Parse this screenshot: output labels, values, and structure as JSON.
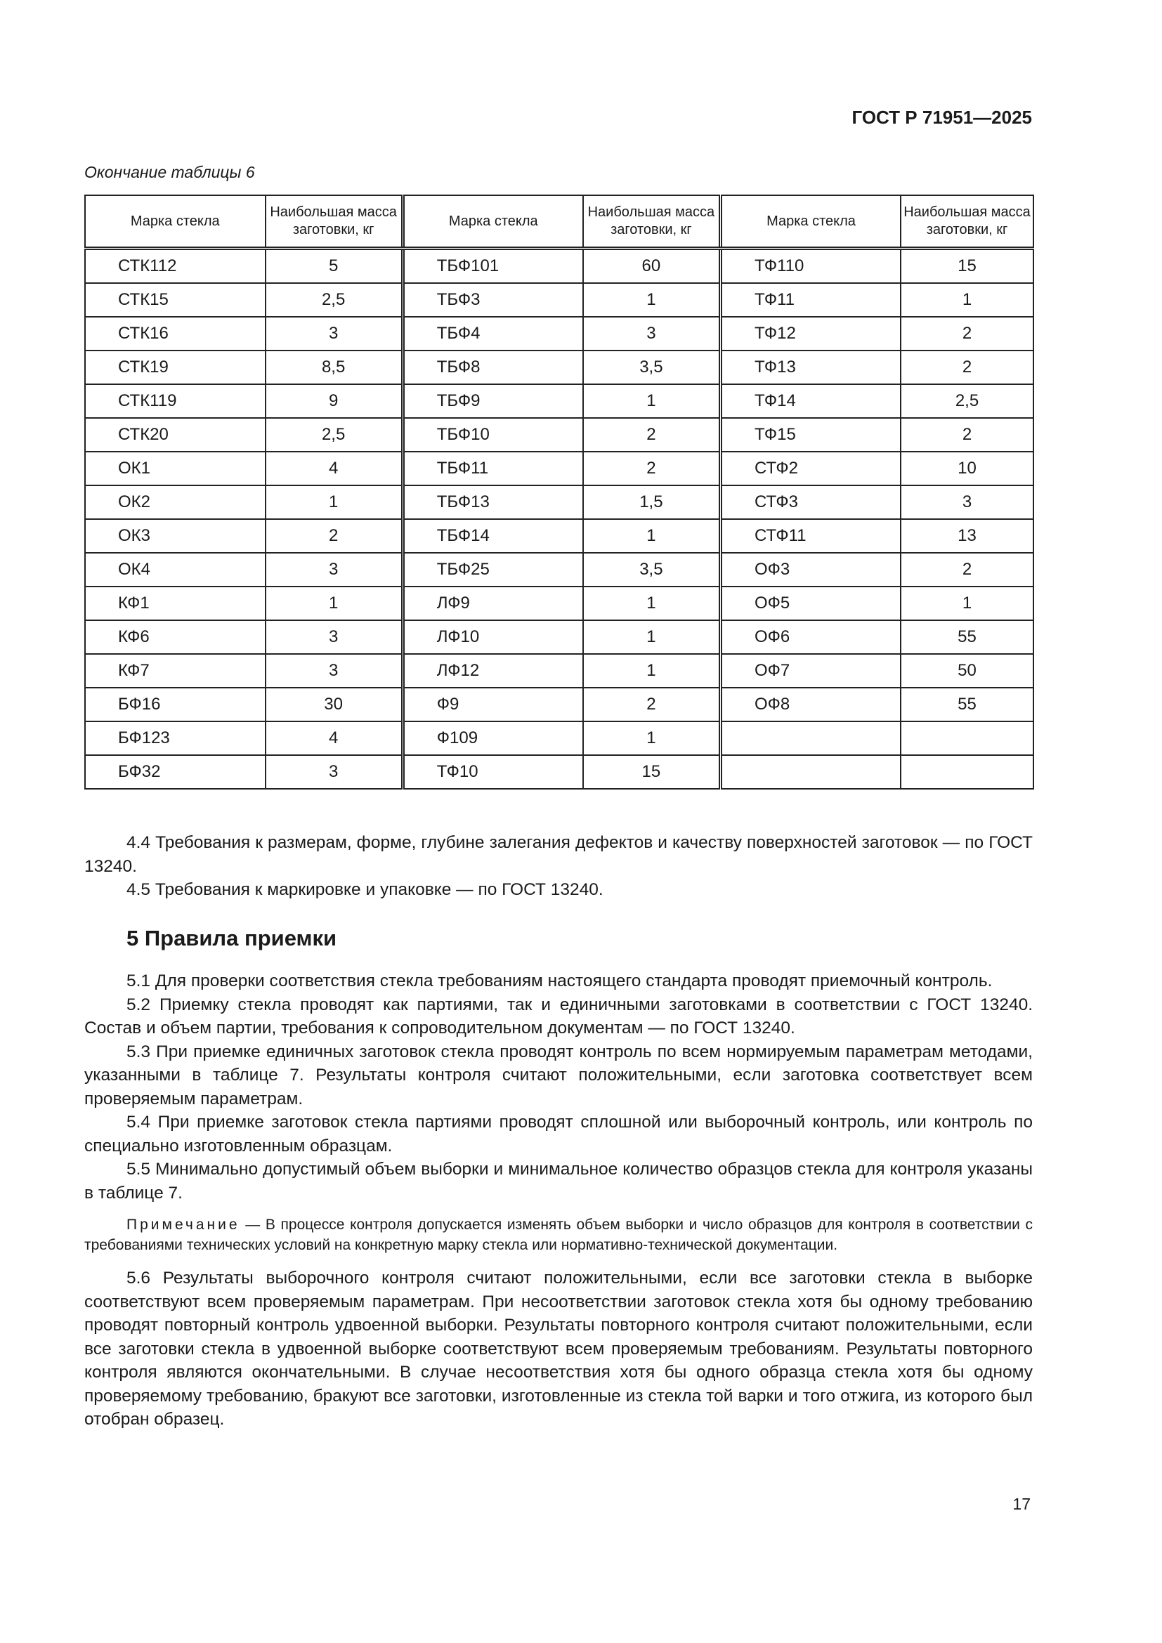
{
  "header": "ГОСТ Р 71951—2025",
  "caption": "Окончание таблицы 6",
  "table": {
    "headers": [
      "Марка стекла",
      "Наибольшая масса заготовки, кг",
      "Марка стекла",
      "Наибольшая масса заготовки, кг",
      "Марка стекла",
      "Наибольшая масса заготовки, кг"
    ],
    "rows": [
      [
        "СТК112",
        "5",
        "ТБФ101",
        "60",
        "ТФ110",
        "15"
      ],
      [
        "СТК15",
        "2,5",
        "ТБФ3",
        "1",
        "ТФ11",
        "1"
      ],
      [
        "СТК16",
        "3",
        "ТБФ4",
        "3",
        "ТФ12",
        "2"
      ],
      [
        "СТК19",
        "8,5",
        "ТБФ8",
        "3,5",
        "ТФ13",
        "2"
      ],
      [
        "СТК119",
        "9",
        "ТБФ9",
        "1",
        "ТФ14",
        "2,5"
      ],
      [
        "СТК20",
        "2,5",
        "ТБФ10",
        "2",
        "ТФ15",
        "2"
      ],
      [
        "ОК1",
        "4",
        "ТБФ11",
        "2",
        "СТФ2",
        "10"
      ],
      [
        "ОК2",
        "1",
        "ТБФ13",
        "1,5",
        "СТФ3",
        "3"
      ],
      [
        "ОК3",
        "2",
        "ТБФ14",
        "1",
        "СТФ11",
        "13"
      ],
      [
        "ОК4",
        "3",
        "ТБФ25",
        "3,5",
        "ОФ3",
        "2"
      ],
      [
        "КФ1",
        "1",
        "ЛФ9",
        "1",
        "ОФ5",
        "1"
      ],
      [
        "КФ6",
        "3",
        "ЛФ10",
        "1",
        "ОФ6",
        "55"
      ],
      [
        "КФ7",
        "3",
        "ЛФ12",
        "1",
        "ОФ7",
        "50"
      ],
      [
        "БФ16",
        "30",
        "Ф9",
        "2",
        "ОФ8",
        "55"
      ],
      [
        "БФ123",
        "4",
        "Ф109",
        "1",
        "",
        ""
      ],
      [
        "БФ32",
        "3",
        "ТФ10",
        "15",
        "",
        ""
      ]
    ]
  },
  "p44": "4.4  Требования к размерам, форме, глубине залегания дефектов и качеству поверхностей заготовок — по ГОСТ 13240.",
  "p45": "4.5  Требования к маркировке и упаковке — по ГОСТ 13240.",
  "section": "5  Правила приемки",
  "p51": "5.1  Для проверки соответствия стекла требованиям настоящего стандарта проводят приемочный контроль.",
  "p52": "5.2  Приемку стекла проводят как партиями, так и единичными заготовками в соответствии с ГОСТ 13240. Состав и объем партии, требования к сопроводительном документам — по ГОСТ 13240.",
  "p53": "5.3  При приемке единичных заготовок стекла проводят контроль по всем нормируемым параметрам методами, указанными в таблице 7. Результаты контроля считают положительными, если заготовка соответствует всем проверяемым параметрам.",
  "p54": "5.4  При приемке заготовок стекла партиями проводят сплошной или выборочный контроль, или контроль по специально изготовленным образцам.",
  "p55": "5.5  Минимально допустимый объем выборки и минимальное количество образцов стекла для контроля указаны в таблице 7.",
  "note_label": "Примечание",
  "note_text": " — В процессе контроля допускается изменять объем выборки и число образцов для контроля в соответствии с требованиями технических условий на конкретную марку стекла или нормативно-технической документации.",
  "p56": "5.6  Результаты выборочного контроля считают положительными, если все заготовки стекла в выборке соответствуют всем проверяемым параметрам. При несоответствии заготовок стекла хотя бы одному требованию проводят повторный контроль удвоенной выборки. Результаты повторного контроля считают положительными, если все заготовки стекла в удвоенной выборке соответствуют всем проверяемым требованиям. Результаты повторного контроля являются окончательными. В случае несоответствия хотя бы одного образца стекла хотя бы одному проверяемому требованию, бракуют все заготовки, изготовленные из стекла той варки и того отжига, из которого был отобран образец.",
  "page_number": "17"
}
